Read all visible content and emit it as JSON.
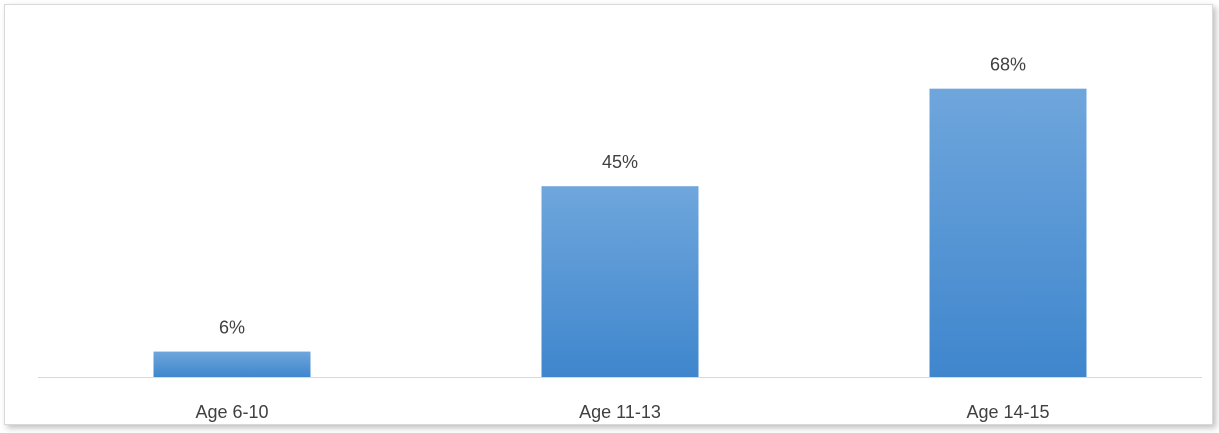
{
  "chart_data": {
    "type": "bar",
    "categories": [
      "Age 6-10",
      "Age 11-13",
      "Age 14-15"
    ],
    "values": [
      6,
      45,
      68
    ],
    "data_labels": [
      "6%",
      "45%",
      "68%"
    ],
    "title": "",
    "xlabel": "",
    "ylabel": "",
    "ylim": [
      0,
      80
    ],
    "grid": false,
    "legend": "none",
    "colors": {
      "bar_top": "#6fa6dc",
      "bar_bottom": "#3f86cd",
      "axis": "#d9d9d9",
      "text": "#404040",
      "frame_border": "#d9d9d9"
    }
  }
}
